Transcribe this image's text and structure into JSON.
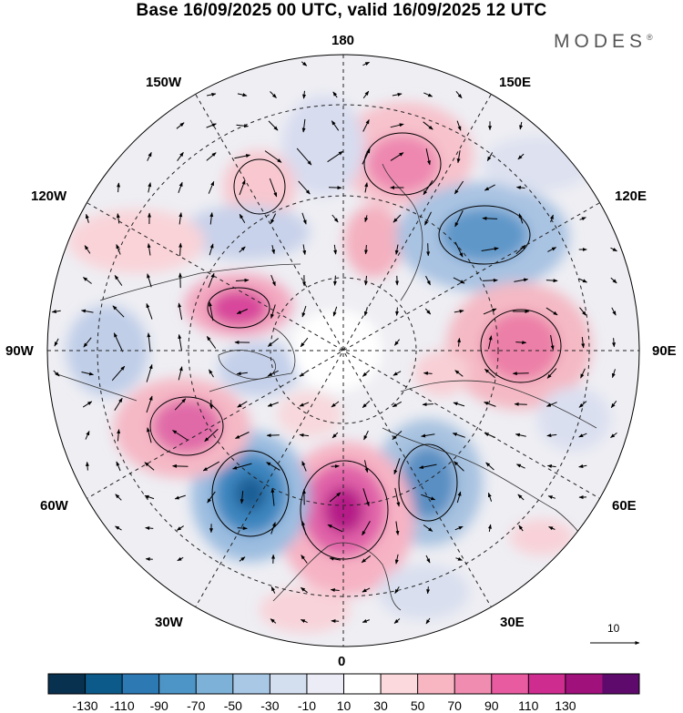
{
  "title": "Base 16/09/2025 00 UTC, valid 16/09/2025 12 UTC",
  "logo": "MODES",
  "logo_mark": "®",
  "lon_labels": {
    "n180": "180",
    "w150": "150W",
    "e150": "150E",
    "w120": "120W",
    "e120": "120E",
    "w90": "90W",
    "e90": "90E",
    "w60": "60W",
    "e60": "60E",
    "w30": "30W",
    "e30": "30E",
    "s0": "0"
  },
  "vector_scale": {
    "value": "10"
  },
  "colorbar": {
    "ticks": [
      "-130",
      "-110",
      "-90",
      "-70",
      "-50",
      "-30",
      "-10",
      "10",
      "30",
      "50",
      "70",
      "90",
      "110",
      "130"
    ],
    "colors": [
      "#08304f",
      "#0b5a8a",
      "#2c79b4",
      "#4d95c7",
      "#7eb1d8",
      "#a9c8e6",
      "#d3deef",
      "#ececf7",
      "#ffffff",
      "#fbd9dc",
      "#f7b6c2",
      "#f08cb0",
      "#e95ba0",
      "#cf2c90",
      "#a0117c",
      "#5e0a6c"
    ]
  },
  "map_data": {
    "field": "height anomaly (shaded) with wind vectors",
    "projection": "north polar stereographic",
    "centers": [
      {
        "sign": "pos",
        "lon": 150,
        "value": 70
      },
      {
        "sign": "neg",
        "lon": 160,
        "value": -30
      },
      {
        "sign": "neg",
        "lon": -170,
        "value": -50
      },
      {
        "sign": "pos",
        "lon": -150,
        "value": 50
      },
      {
        "sign": "neg",
        "lon": 125,
        "value": -70
      },
      {
        "sign": "pos",
        "lon": 90,
        "value": 70
      },
      {
        "sign": "neg",
        "lon": 40,
        "value": -70
      },
      {
        "sign": "pos",
        "lon": 0,
        "value": 110
      },
      {
        "sign": "neg",
        "lon": -35,
        "value": -90
      },
      {
        "sign": "pos",
        "lon": -60,
        "value": 90
      },
      {
        "sign": "pos",
        "lon": -110,
        "value": 90
      },
      {
        "sign": "neg",
        "lon": -90,
        "value": -50
      }
    ]
  }
}
